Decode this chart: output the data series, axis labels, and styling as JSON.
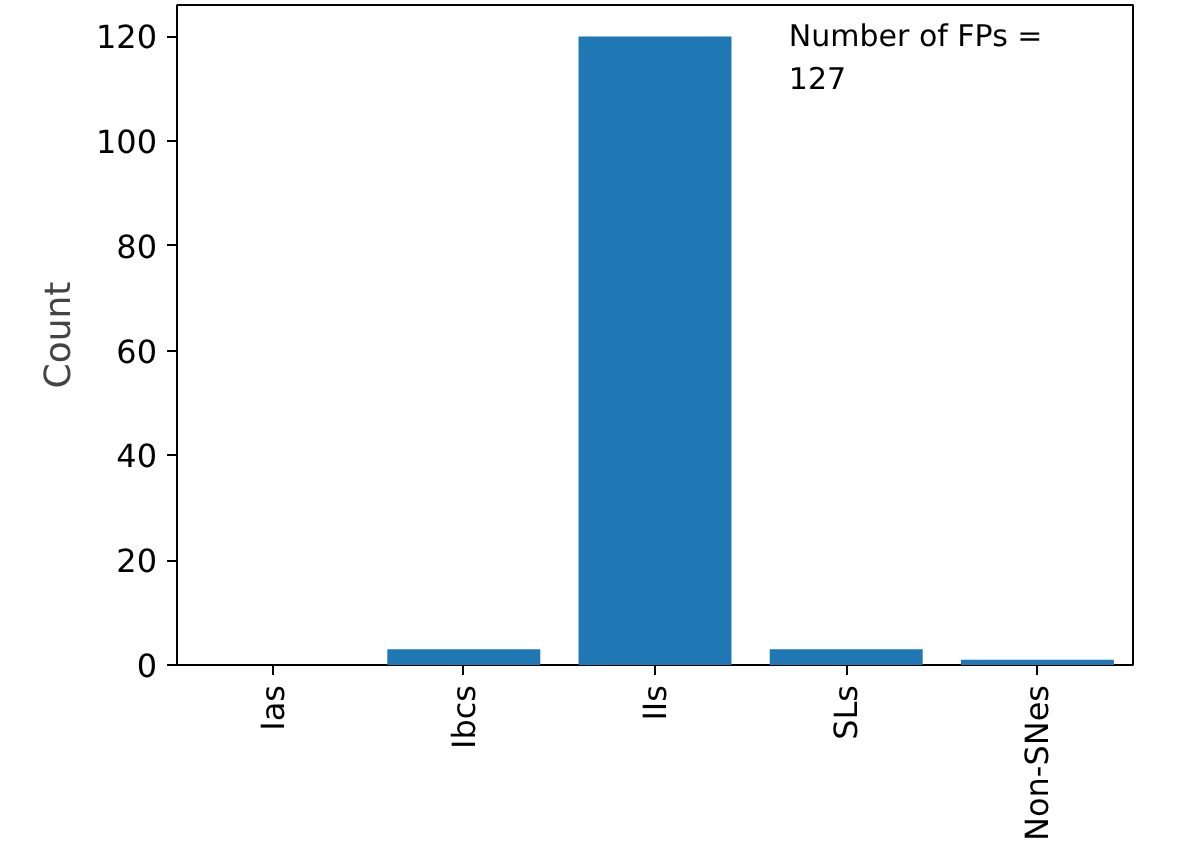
{
  "chart_data": {
    "type": "bar",
    "ylabel": "Count",
    "categories": [
      "Ias",
      "Ibcs",
      "IIs",
      "SLs",
      "Non-SNes"
    ],
    "values": [
      0,
      3,
      120,
      3,
      1
    ],
    "color": "#1f77b4",
    "ylim": [
      0,
      126
    ],
    "yticks": [
      0,
      20,
      40,
      60,
      80,
      100,
      120
    ],
    "grid": false,
    "annotations": [
      "Number of FPs =\n127"
    ]
  }
}
